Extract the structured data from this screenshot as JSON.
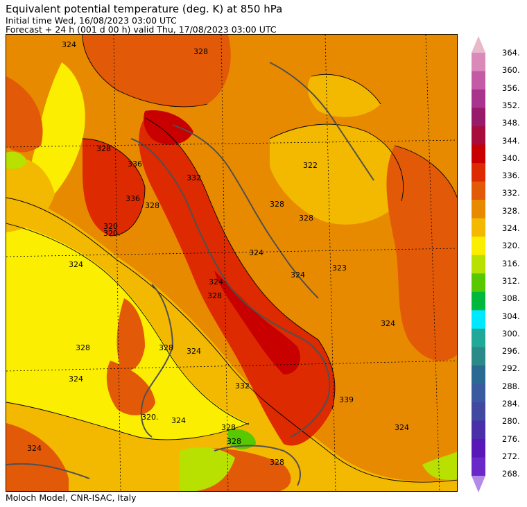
{
  "header": {
    "title": "Equivalent potential temperature (deg. K) at 850 hPa",
    "initial_time": "Initial time  Wed, 16/08/2023  03:00 UTC",
    "forecast": "Forecast  +  24 h  (001 d 00 h)  valid Thu, 17/08/2023 03:00 UTC"
  },
  "footer": {
    "credit": "Moloch Model, CNR-ISAC, Italy"
  },
  "colorbar": {
    "labels": [
      "364.",
      "360.",
      "356.",
      "352.",
      "348.",
      "344.",
      "340.",
      "336.",
      "332.",
      "328.",
      "324.",
      "320.",
      "316.",
      "312.",
      "308.",
      "304.",
      "300.",
      "296.",
      "292.",
      "288.",
      "284.",
      "280.",
      "276.",
      "272.",
      "268."
    ],
    "colors": [
      "#e8b8cc",
      "#d98ab8",
      "#c45aa5",
      "#a8348e",
      "#981a6a",
      "#a80c3c",
      "#c80000",
      "#dd2a00",
      "#e25a08",
      "#e88a00",
      "#f3b800",
      "#fbee00",
      "#b8e000",
      "#58c800",
      "#00b83c",
      "#00e8ff",
      "#20a898",
      "#2a8a88",
      "#2a6a92",
      "#3a5aa0",
      "#4048a0",
      "#4a30a8",
      "#5818b8",
      "#6a28c8",
      "#b48ae8"
    ]
  },
  "map": {
    "contour_labels": [
      {
        "text": "324"
      },
      {
        "text": "328"
      },
      {
        "text": "328"
      },
      {
        "text": "336"
      },
      {
        "text": "336"
      },
      {
        "text": "332"
      },
      {
        "text": "328"
      },
      {
        "text": "320."
      },
      {
        "text": "324"
      },
      {
        "text": "324"
      },
      {
        "text": "322"
      },
      {
        "text": "328"
      },
      {
        "text": "328"
      },
      {
        "text": "323"
      },
      {
        "text": "324"
      },
      {
        "text": "324"
      },
      {
        "text": "328"
      },
      {
        "text": "324"
      },
      {
        "text": "324"
      },
      {
        "text": "328"
      },
      {
        "text": "320."
      },
      {
        "text": "324"
      },
      {
        "text": "328"
      },
      {
        "text": "332"
      },
      {
        "text": "339"
      },
      {
        "text": "324"
      },
      {
        "text": "324"
      },
      {
        "text": "328"
      },
      {
        "text": "324"
      },
      {
        "text": "328"
      },
      {
        "text": "328"
      },
      {
        "text": "320"
      }
    ]
  }
}
